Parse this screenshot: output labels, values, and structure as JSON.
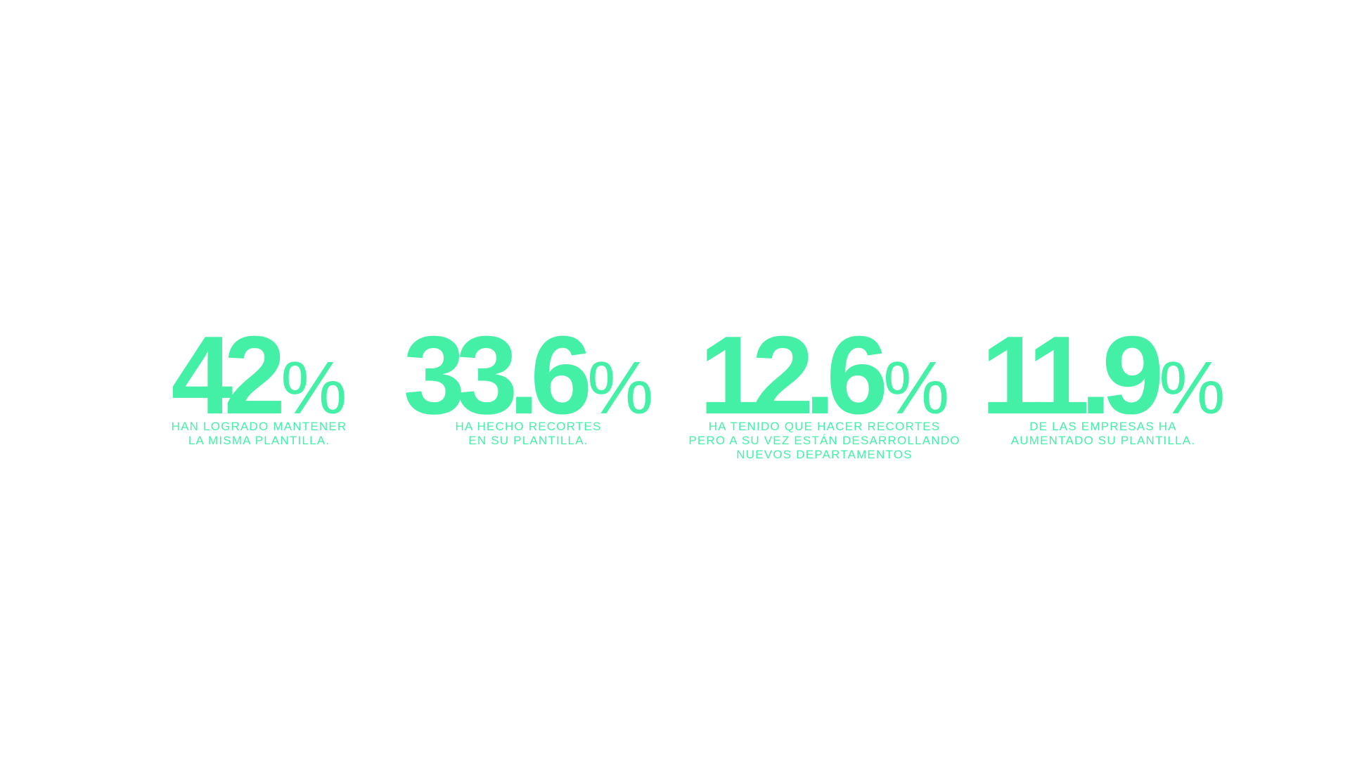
{
  "accent_color": "#44f0a6",
  "stats": [
    {
      "value": "42",
      "unit": "%",
      "caption_lines": [
        "HAN LOGRADO MANTENER",
        "LA MISMA PLANTILLA."
      ]
    },
    {
      "value": "33.6",
      "unit": "%",
      "caption_lines": [
        "HA HECHO RECORTES",
        "EN SU PLANTILLA."
      ]
    },
    {
      "value": "12.6",
      "unit": "%",
      "caption_lines": [
        "HA TENIDO QUE HACER RECORTES",
        "PERO A SU VEZ ESTÁN DESARROLLANDO",
        "NUEVOS DEPARTAMENTOS"
      ]
    },
    {
      "value": "11.9",
      "unit": "%",
      "caption_lines": [
        "DE LAS EMPRESAS HA",
        "AUMENTADO SU PLANTILLA."
      ]
    }
  ]
}
